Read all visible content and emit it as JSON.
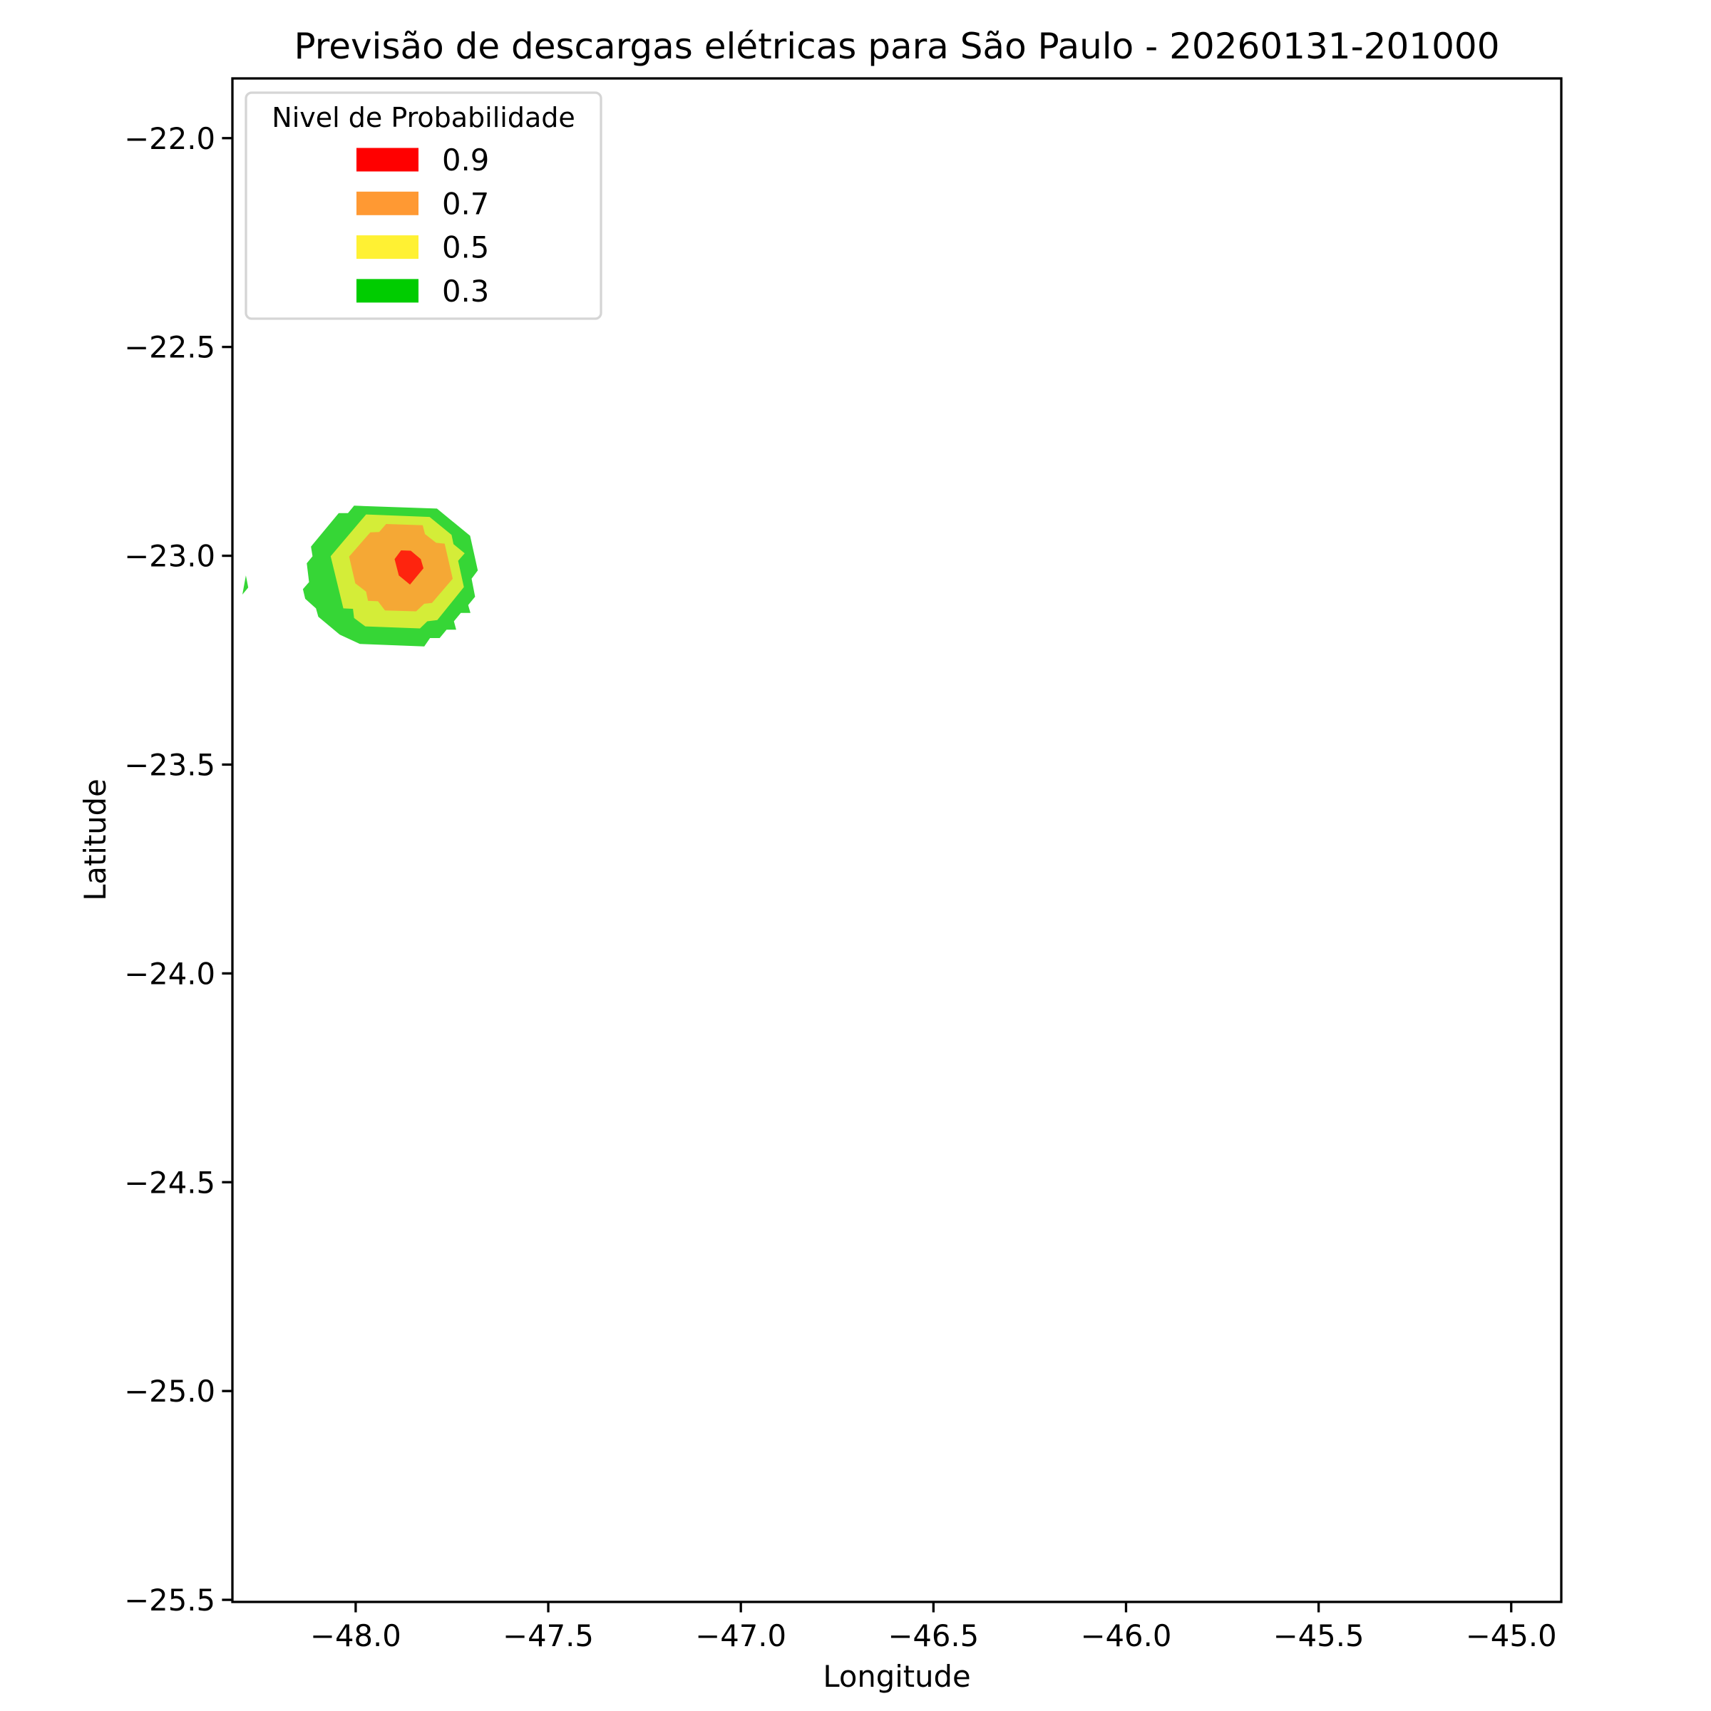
{
  "chart_data": {
    "type": "contourf",
    "title": "Previsão de descargas elétricas para São Paulo - 20260131-201000",
    "xlabel": "Longitude",
    "ylabel": "Latitude",
    "xlim": [
      -48.32,
      -44.87
    ],
    "ylim": [
      -25.505,
      -21.857
    ],
    "xticks": [
      -48.0,
      -47.5,
      -47.0,
      -46.5,
      -46.0,
      -45.5,
      -45.0
    ],
    "xtick_labels": [
      "−48.0",
      "−47.5",
      "−47.0",
      "−46.5",
      "−46.0",
      "−45.5",
      "−45.0"
    ],
    "yticks": [
      -22.0,
      -22.5,
      -23.0,
      -23.5,
      -24.0,
      -24.5,
      -25.0,
      -25.5
    ],
    "ytick_labels": [
      "−22.0",
      "−22.5",
      "−23.0",
      "−23.5",
      "−24.0",
      "−24.5",
      "−25.0",
      "−25.5"
    ],
    "grid": false,
    "legend": {
      "title": "Nivel de Probabilidade",
      "placement": "upper-left",
      "entries": [
        {
          "label": "0.9",
          "color": "#ff0000"
        },
        {
          "label": "0.7",
          "color": "#ff9933"
        },
        {
          "label": "0.5",
          "color": "#fff133"
        },
        {
          "label": "0.3",
          "color": "#00cc00"
        }
      ]
    },
    "contours": [
      {
        "level": 0.3,
        "color": "#36d636",
        "polygons": [
          [
            [
              -48.004,
              -22.88
            ],
            [
              -47.789,
              -22.887
            ],
            [
              -47.703,
              -22.952
            ],
            [
              -47.683,
              -23.035
            ],
            [
              -47.699,
              -23.055
            ],
            [
              -47.69,
              -23.098
            ],
            [
              -47.708,
              -23.118
            ],
            [
              -47.702,
              -23.137
            ],
            [
              -47.727,
              -23.137
            ],
            [
              -47.745,
              -23.157
            ],
            [
              -47.739,
              -23.177
            ],
            [
              -47.764,
              -23.177
            ],
            [
              -47.782,
              -23.197
            ],
            [
              -47.807,
              -23.197
            ],
            [
              -47.822,
              -23.217
            ],
            [
              -47.989,
              -23.211
            ],
            [
              -48.041,
              -23.189
            ],
            [
              -48.097,
              -23.146
            ],
            [
              -48.103,
              -23.126
            ],
            [
              -48.131,
              -23.103
            ],
            [
              -48.137,
              -23.08
            ],
            [
              -48.121,
              -23.063
            ],
            [
              -48.127,
              -23.018
            ],
            [
              -48.112,
              -23.001
            ],
            [
              -48.116,
              -22.978
            ],
            [
              -48.044,
              -22.898
            ],
            [
              -48.02,
              -22.898
            ]
          ],
          [
            [
              -48.285,
              -23.047
            ],
            [
              -48.279,
              -23.076
            ],
            [
              -48.294,
              -23.093
            ]
          ]
        ]
      },
      {
        "level": 0.5,
        "color": "#d4ed38",
        "polygons": [
          [
            [
              -47.973,
              -22.901
            ],
            [
              -47.808,
              -22.907
            ],
            [
              -47.751,
              -22.95
            ],
            [
              -47.746,
              -22.972
            ],
            [
              -47.717,
              -22.994
            ],
            [
              -47.734,
              -23.012
            ],
            [
              -47.719,
              -23.075
            ],
            [
              -47.788,
              -23.154
            ],
            [
              -47.814,
              -23.157
            ],
            [
              -47.833,
              -23.174
            ],
            [
              -47.975,
              -23.169
            ],
            [
              -48.004,
              -23.149
            ],
            [
              -48.007,
              -23.127
            ],
            [
              -48.032,
              -23.126
            ],
            [
              -48.065,
              -23.001
            ]
          ]
        ]
      },
      {
        "level": 0.7,
        "color": "#f5a835",
        "polygons": [
          [
            [
              -47.921,
              -22.924
            ],
            [
              -47.826,
              -22.927
            ],
            [
              -47.82,
              -22.948
            ],
            [
              -47.791,
              -22.969
            ],
            [
              -47.769,
              -22.971
            ],
            [
              -47.748,
              -23.055
            ],
            [
              -47.802,
              -23.113
            ],
            [
              -47.822,
              -23.115
            ],
            [
              -47.843,
              -23.133
            ],
            [
              -47.924,
              -23.131
            ],
            [
              -47.942,
              -23.109
            ],
            [
              -47.968,
              -23.108
            ],
            [
              -47.973,
              -23.086
            ],
            [
              -48.001,
              -23.066
            ],
            [
              -48.017,
              -23.002
            ],
            [
              -47.962,
              -22.944
            ],
            [
              -47.939,
              -22.943
            ]
          ]
        ]
      },
      {
        "level": 0.9,
        "color": "#fe240e",
        "polygons": [
          [
            [
              -47.882,
              -22.987
            ],
            [
              -47.857,
              -22.988
            ],
            [
              -47.831,
              -23.008
            ],
            [
              -47.824,
              -23.03
            ],
            [
              -47.859,
              -23.069
            ],
            [
              -47.888,
              -23.047
            ],
            [
              -47.899,
              -23.008
            ]
          ]
        ]
      }
    ]
  }
}
